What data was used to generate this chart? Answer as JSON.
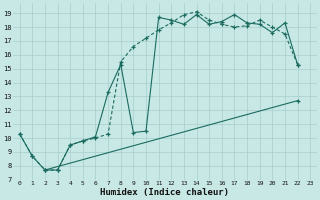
{
  "xlabel": "Humidex (Indice chaleur)",
  "bg_color": "#c8e8e5",
  "grid_color": "#a8ceca",
  "line_color": "#1a6b60",
  "xlim": [
    -0.5,
    23.5
  ],
  "ylim": [
    7.0,
    19.7
  ],
  "xticks": [
    0,
    1,
    2,
    3,
    4,
    5,
    6,
    7,
    8,
    9,
    10,
    11,
    12,
    13,
    14,
    15,
    16,
    17,
    18,
    19,
    20,
    21,
    22,
    23
  ],
  "yticks": [
    7,
    8,
    9,
    10,
    11,
    12,
    13,
    14,
    15,
    16,
    17,
    18,
    19
  ],
  "curve1_x": [
    0,
    1,
    2,
    3,
    4,
    5,
    6,
    7,
    8,
    9,
    10,
    11,
    12,
    13,
    14,
    15,
    16,
    17,
    18,
    19,
    20,
    21,
    22
  ],
  "curve1_y": [
    10.3,
    8.7,
    7.7,
    7.7,
    9.5,
    9.8,
    10.1,
    13.3,
    15.3,
    10.4,
    10.5,
    18.7,
    18.5,
    18.2,
    18.9,
    18.2,
    18.4,
    18.9,
    18.3,
    18.2,
    17.6,
    18.3,
    15.3
  ],
  "curve2_x": [
    0,
    1,
    2,
    3,
    4,
    5,
    6,
    7,
    8,
    9,
    10,
    11,
    12,
    13,
    14,
    15,
    16,
    17,
    18,
    19,
    20,
    21,
    22
  ],
  "curve2_y": [
    10.3,
    8.7,
    7.7,
    7.7,
    9.5,
    9.8,
    10.0,
    10.3,
    15.5,
    16.6,
    17.2,
    17.8,
    18.3,
    18.9,
    19.1,
    18.5,
    18.2,
    18.0,
    18.1,
    18.5,
    18.0,
    17.5,
    15.3
  ],
  "line3_x": [
    2,
    22
  ],
  "line3_y": [
    7.7,
    12.7
  ]
}
